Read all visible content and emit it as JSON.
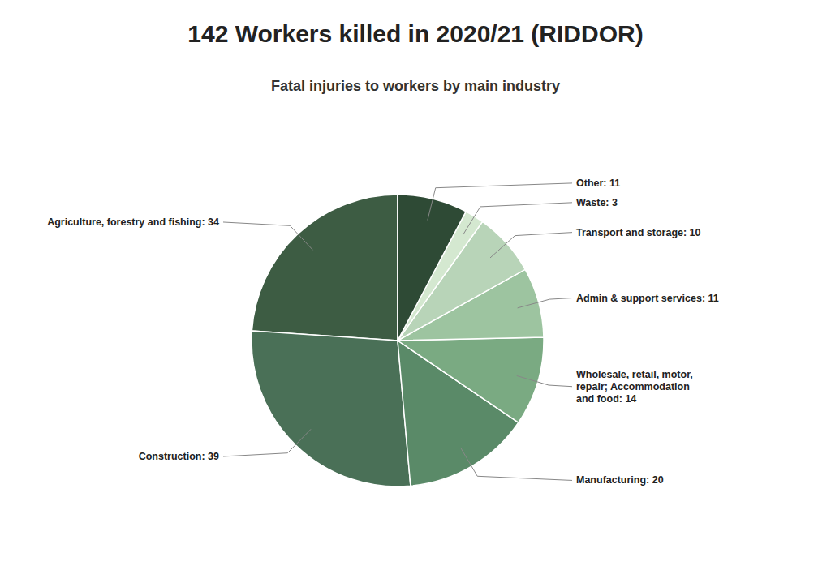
{
  "chart_data": {
    "type": "pie",
    "title": "142 Workers killed in 2020/21 (RIDDOR)",
    "subtitle": "Fatal injuries to workers by main industry",
    "categories": [
      "Agriculture, forestry and fishing: 34",
      "Construction: 39",
      "Manufacturing: 20",
      "Wholesale, retail, motor,\nrepair; Accommodation\nand food: 14",
      "Admin & support services: 11",
      "Transport and storage: 10",
      "Waste: 3",
      "Other: 11"
    ],
    "values": [
      34,
      39,
      20,
      14,
      11,
      10,
      3,
      11
    ],
    "colors": [
      "#3d5c43",
      "#4a7057",
      "#5a8a68",
      "#7aaa82",
      "#9dc4a0",
      "#b8d4b8",
      "#d4e8d0",
      "#2e4a35"
    ]
  }
}
